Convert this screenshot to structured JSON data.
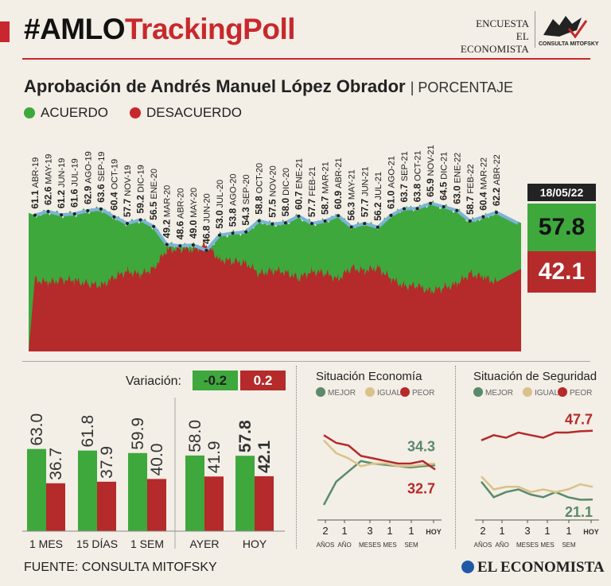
{
  "header": {
    "title_part1": "#AMLO",
    "title_part2": "TrackingPoll",
    "encuesta": "ENCUESTA",
    "publisher": "EL ECONOMISTA",
    "pollster_logo": "CONSULTA MITOFSKY"
  },
  "subtitle": {
    "main": "Aprobación de Andrés Manuel López Obrador",
    "unit": "| PORCENTAJE"
  },
  "legend": {
    "agree": "ACUERDO",
    "disagree": "DESACUERDO"
  },
  "colors": {
    "agree": "#3ea83c",
    "disagree": "#b52a2a",
    "line": "#7ab4d8",
    "igual": "#d9c28a",
    "mejor": "#5a8a6a",
    "peor": "#b52a2a",
    "background": "#f3eee6"
  },
  "current": {
    "date": "18/05/22",
    "agree": "57.8",
    "disagree": "42.1"
  },
  "chart_data": [
    {
      "type": "area",
      "title": "Aprobación de Andrés Manuel López Obrador",
      "unit": "PORCENTAJE",
      "series_names": [
        "ACUERDO",
        "DESACUERDO"
      ],
      "ylim": [
        0,
        80
      ],
      "points": [
        {
          "label": "ABR-19",
          "value": "61.1"
        },
        {
          "label": "MAY-19",
          "value": "62.6"
        },
        {
          "label": "JUN-19",
          "value": "61.2"
        },
        {
          "label": "JUL-19",
          "value": "61.6"
        },
        {
          "label": "AGO-19",
          "value": "62.9"
        },
        {
          "label": "SEP-19",
          "value": "63.6"
        },
        {
          "label": "OCT-19",
          "value": "60.4"
        },
        {
          "label": "NOV-19",
          "value": "57.7"
        },
        {
          "label": "DIC-19",
          "value": "59.2"
        },
        {
          "label": "ENE-20",
          "value": "56.5"
        },
        {
          "label": "MAR-20",
          "value": "49.2"
        },
        {
          "label": "ABR-20",
          "value": "48.6"
        },
        {
          "label": "MAY-20",
          "value": "49.0"
        },
        {
          "label": "JUN-20",
          "value": "46.8"
        },
        {
          "label": "JUL-20",
          "value": "53.0"
        },
        {
          "label": "AGO-20",
          "value": "53.8"
        },
        {
          "label": "SEP-20",
          "value": "54.3"
        },
        {
          "label": "OCT-20",
          "value": "58.8"
        },
        {
          "label": "NOV-20",
          "value": "57.5"
        },
        {
          "label": "DIC-20",
          "value": "58.0"
        },
        {
          "label": "ENE-21",
          "value": "60.7"
        },
        {
          "label": "FEB-21",
          "value": "57.7"
        },
        {
          "label": "MAR-21",
          "value": "58.7"
        },
        {
          "label": "ABR-21",
          "value": "60.9"
        },
        {
          "label": "MAY-21",
          "value": "56.3"
        },
        {
          "label": "JUN-21",
          "value": "57.7"
        },
        {
          "label": "JUL-21",
          "value": "56.2"
        },
        {
          "label": "AGO-21",
          "value": "61.0"
        },
        {
          "label": "SEP-21",
          "value": "63.7"
        },
        {
          "label": "OCT-21",
          "value": "63.8"
        },
        {
          "label": "NOV-21",
          "value": "65.9"
        },
        {
          "label": "DIC-21",
          "value": "64.5"
        },
        {
          "label": "ENE-22",
          "value": "63.0"
        },
        {
          "label": "FEB-22",
          "value": "58.7"
        },
        {
          "label": "MAR-22",
          "value": "60.4"
        },
        {
          "label": "ABR-22",
          "value": "62.2"
        }
      ]
    },
    {
      "type": "bar",
      "variation_label": "Variación:",
      "variation_agree": "-0.2",
      "variation_disagree": "0.2",
      "categories": [
        "1 MES",
        "15 DÍAS",
        "1 SEM",
        "AYER",
        "HOY"
      ],
      "series": [
        {
          "name": "ACUERDO",
          "values": [
            "63.0",
            "61.8",
            "59.9",
            "58.0",
            "57.8"
          ]
        },
        {
          "name": "DESACUERDO",
          "values": [
            "36.7",
            "37.9",
            "40.0",
            "41.9",
            "42.1"
          ]
        }
      ],
      "ylim": [
        0,
        70
      ]
    },
    {
      "type": "line",
      "title": "Situación Economía",
      "legend": [
        "MEJOR",
        "IGUAL",
        "PEOR"
      ],
      "x_labels": [
        {
          "top": "2",
          "bottom": "AÑOS"
        },
        {
          "top": "1",
          "bottom": "AÑO"
        },
        {
          "top": "3",
          "bottom": "MESES"
        },
        {
          "top": "1",
          "bottom": "MES"
        },
        {
          "top": "1",
          "bottom": "SEM"
        },
        {
          "top": "",
          "bottom": "HOY"
        }
      ],
      "ylim": [
        15,
        55
      ],
      "series": [
        {
          "name": "MEJOR",
          "values": [
            19,
            28,
            32,
            36,
            35,
            34.5,
            34,
            33.5,
            34,
            34.3
          ]
        },
        {
          "name": "IGUAL",
          "values": [
            44,
            39,
            37,
            34,
            35,
            35,
            34,
            34,
            34.5,
            35
          ]
        },
        {
          "name": "PEOR",
          "values": [
            46,
            43,
            42,
            38,
            37,
            36,
            35,
            35,
            36,
            32.7
          ]
        }
      ],
      "end_labels": {
        "MEJOR": "34.3",
        "PEOR": "32.7"
      }
    },
    {
      "type": "line",
      "title": "Situación de Seguridad",
      "legend": [
        "MEJOR",
        "IGUAL",
        "PEOR"
      ],
      "x_labels": [
        {
          "top": "2",
          "bottom": "AÑOS"
        },
        {
          "top": "1",
          "bottom": "AÑO"
        },
        {
          "top": "3",
          "bottom": "MESES"
        },
        {
          "top": "1",
          "bottom": "MES"
        },
        {
          "top": "1",
          "bottom": "SEM"
        },
        {
          "top": "",
          "bottom": "HOY"
        }
      ],
      "ylim": [
        15,
        55
      ],
      "series": [
        {
          "name": "MEJOR",
          "values": [
            28,
            22,
            24,
            25,
            23,
            22,
            24,
            22,
            21,
            21.1
          ]
        },
        {
          "name": "IGUAL",
          "values": [
            30,
            25,
            26,
            26,
            24,
            25,
            24,
            25,
            27,
            26
          ]
        },
        {
          "name": "PEOR",
          "values": [
            44,
            46,
            45,
            47,
            46,
            45,
            47,
            47,
            47.5,
            47.7
          ]
        }
      ],
      "end_labels": {
        "MEJOR": "21.1",
        "PEOR": "47.7"
      }
    }
  ],
  "footer": {
    "source": "FUENTE: CONSULTA MITOFSKY",
    "brand": "EL ECONOMISTA"
  }
}
